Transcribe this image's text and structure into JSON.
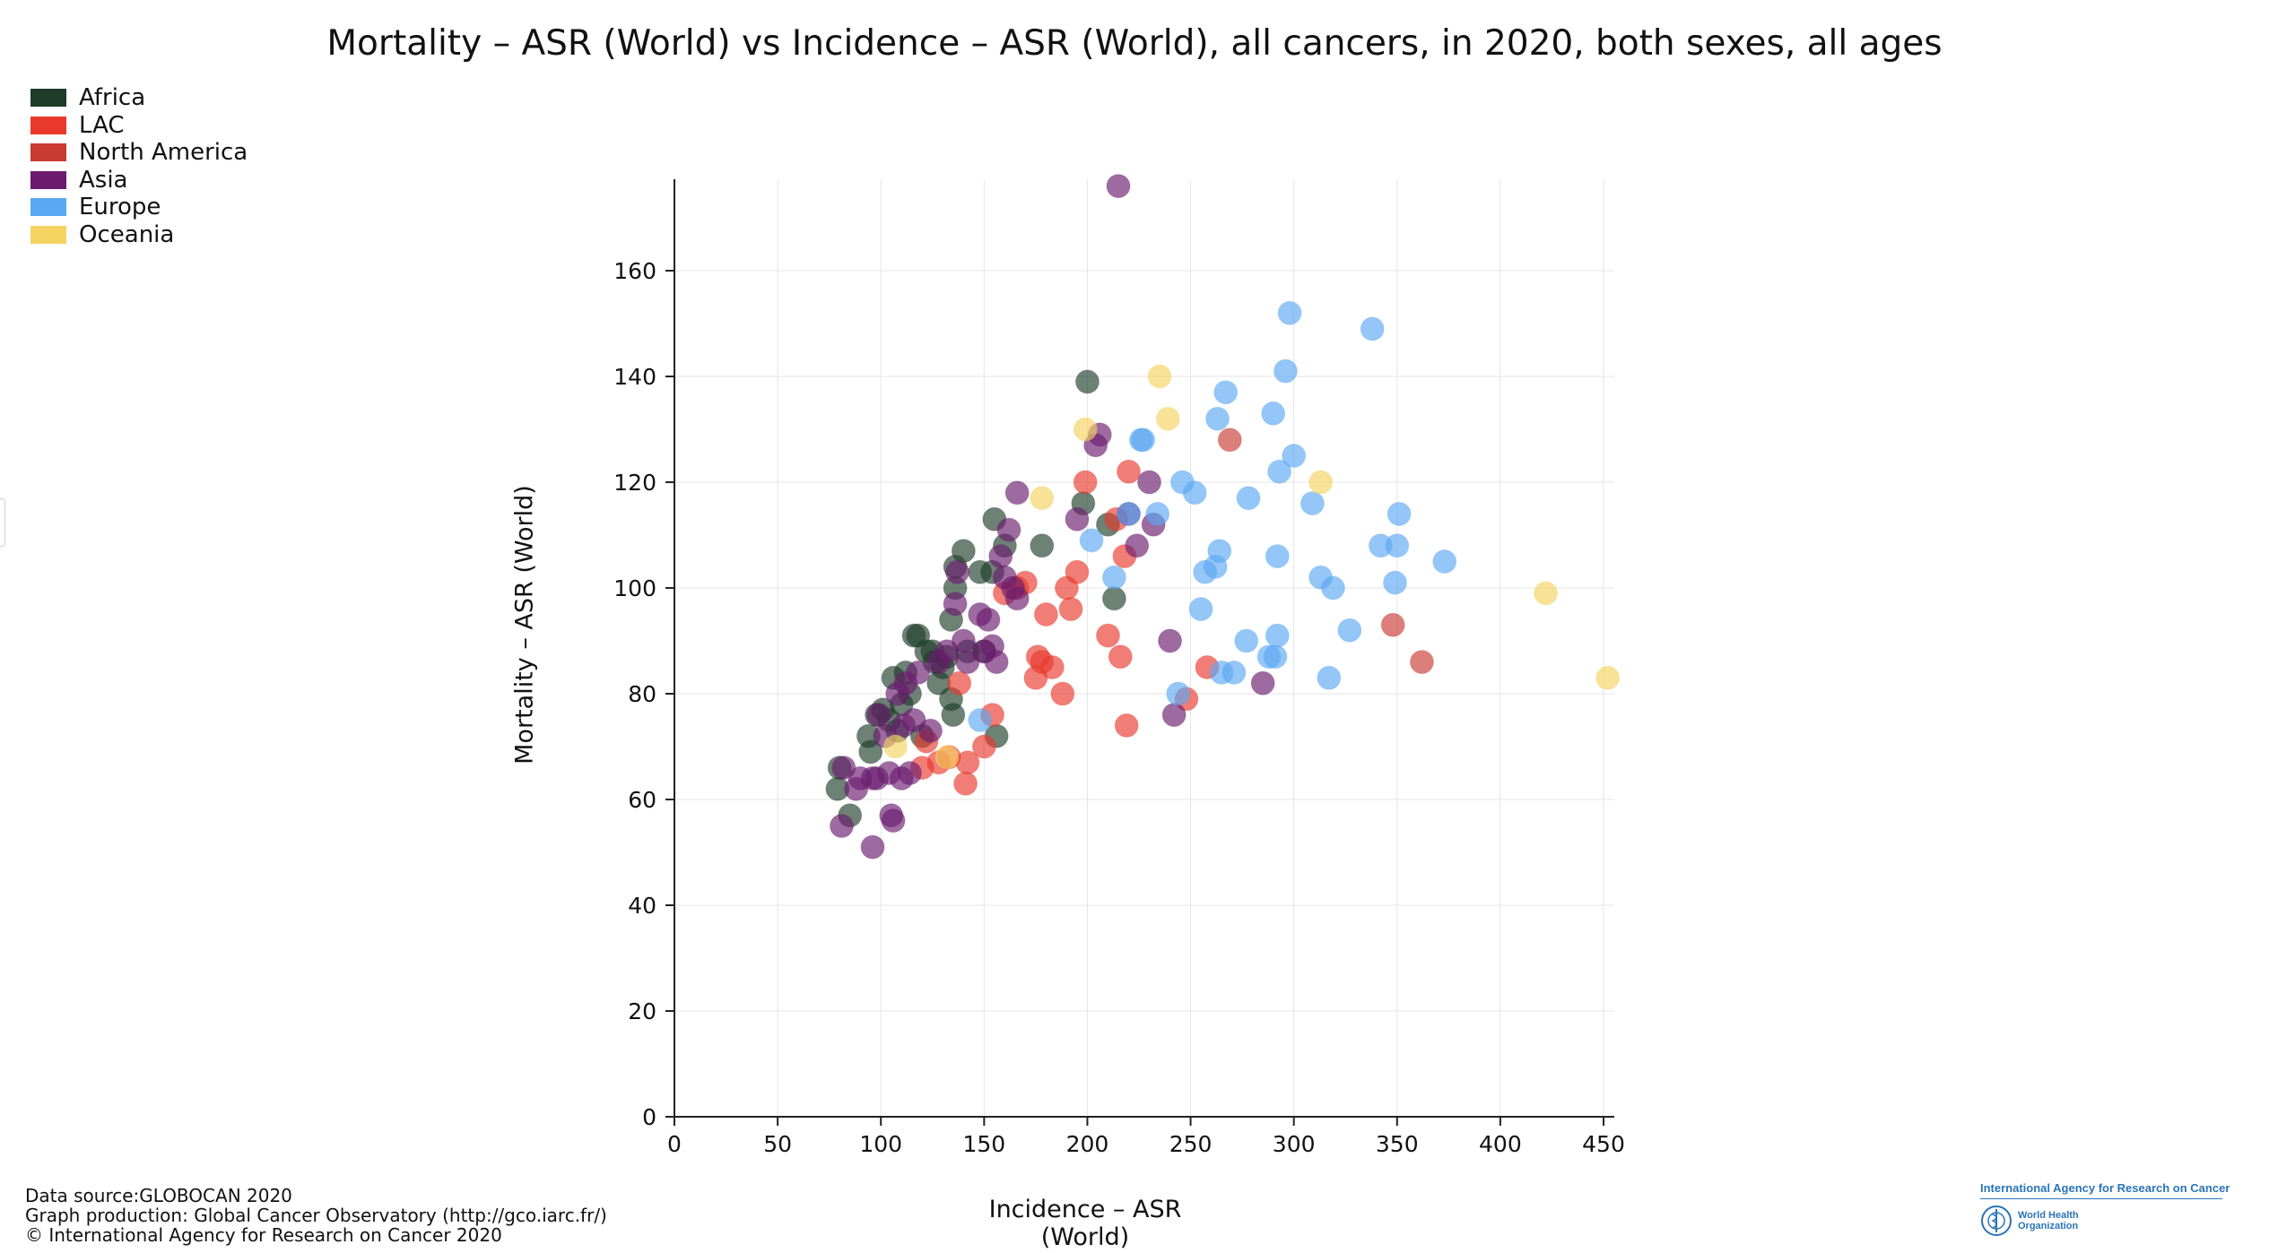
{
  "title": "Mortality – ASR (World) vs Incidence – ASR (World), all cancers, in 2020, both sexes, all ages",
  "footer": {
    "line1": "Data source:GLOBOCAN 2020",
    "line2": "Graph production: Global Cancer Observatory (http://gco.iarc.fr/)",
    "line3": "© International Agency for Research on Cancer 2020"
  },
  "logo": {
    "top": "International Agency for Research on Cancer",
    "who_line1": "World Health",
    "who_line2": "Organization",
    "icon": "who-emblem-icon"
  },
  "colors": {
    "Africa": "#1f3d2b",
    "LAC": "#e8392c",
    "North America": "#c93a32",
    "Asia": "#6a1b6e",
    "Europe": "#5aa8f2",
    "Oceania": "#f5d360"
  },
  "chart_data": {
    "type": "scatter",
    "title": "Mortality – ASR (World) vs Incidence – ASR (World), all cancers, in 2020, both sexes, all ages",
    "xlabel": "Incidence – ASR (World)",
    "ylabel": "Mortality – ASR (World)",
    "xlim": [
      0,
      452
    ],
    "ylim": [
      0,
      176
    ],
    "xticks": [
      0,
      50,
      100,
      150,
      200,
      250,
      300,
      350,
      400,
      450
    ],
    "yticks": [
      0,
      20,
      40,
      60,
      80,
      100,
      120,
      140,
      160
    ],
    "grid": true,
    "legend_position": "top-left",
    "series": [
      {
        "name": "Africa",
        "points": [
          [
            79,
            62
          ],
          [
            80,
            66
          ],
          [
            85,
            57
          ],
          [
            94,
            72
          ],
          [
            95,
            69
          ],
          [
            98,
            76
          ],
          [
            101,
            77
          ],
          [
            104,
            75
          ],
          [
            106,
            83
          ],
          [
            108,
            73
          ],
          [
            110,
            78
          ],
          [
            112,
            84
          ],
          [
            114,
            80
          ],
          [
            116,
            91
          ],
          [
            118,
            91
          ],
          [
            120,
            72
          ],
          [
            122,
            88
          ],
          [
            125,
            88
          ],
          [
            126,
            86
          ],
          [
            128,
            82
          ],
          [
            130,
            85
          ],
          [
            132,
            87
          ],
          [
            134,
            94
          ],
          [
            134,
            79
          ],
          [
            135,
            76
          ],
          [
            136,
            104
          ],
          [
            136,
            100
          ],
          [
            140,
            107
          ],
          [
            142,
            88
          ],
          [
            148,
            103
          ],
          [
            150,
            88
          ],
          [
            154,
            103
          ],
          [
            155,
            113
          ],
          [
            156,
            72
          ],
          [
            160,
            108
          ],
          [
            178,
            108
          ],
          [
            198,
            116
          ],
          [
            200,
            139
          ],
          [
            210,
            112
          ],
          [
            213,
            98
          ]
        ]
      },
      {
        "name": "LAC",
        "points": [
          [
            120,
            66
          ],
          [
            122,
            71
          ],
          [
            128,
            67
          ],
          [
            133,
            68
          ],
          [
            138,
            82
          ],
          [
            141,
            63
          ],
          [
            142,
            67
          ],
          [
            150,
            70
          ],
          [
            154,
            76
          ],
          [
            160,
            99
          ],
          [
            166,
            100
          ],
          [
            170,
            101
          ],
          [
            175,
            83
          ],
          [
            176,
            87
          ],
          [
            178,
            86
          ],
          [
            180,
            95
          ],
          [
            183,
            85
          ],
          [
            188,
            80
          ],
          [
            190,
            100
          ],
          [
            192,
            96
          ],
          [
            195,
            103
          ],
          [
            199,
            120
          ],
          [
            210,
            91
          ],
          [
            214,
            113
          ],
          [
            216,
            87
          ],
          [
            218,
            106
          ],
          [
            219,
            74
          ],
          [
            220,
            122
          ],
          [
            248,
            79
          ],
          [
            258,
            85
          ]
        ]
      },
      {
        "name": "North America",
        "points": [
          [
            269,
            128
          ],
          [
            348,
            93
          ],
          [
            362,
            86
          ]
        ]
      },
      {
        "name": "Asia",
        "points": [
          [
            81,
            55
          ],
          [
            82,
            66
          ],
          [
            88,
            62
          ],
          [
            90,
            64
          ],
          [
            96,
            51
          ],
          [
            96,
            64
          ],
          [
            98,
            64
          ],
          [
            99,
            76
          ],
          [
            102,
            72
          ],
          [
            104,
            65
          ],
          [
            105,
            57
          ],
          [
            106,
            56
          ],
          [
            108,
            80
          ],
          [
            110,
            64
          ],
          [
            111,
            74
          ],
          [
            112,
            82
          ],
          [
            114,
            65
          ],
          [
            116,
            75
          ],
          [
            118,
            84
          ],
          [
            124,
            73
          ],
          [
            128,
            86
          ],
          [
            132,
            88
          ],
          [
            136,
            97
          ],
          [
            137,
            103
          ],
          [
            140,
            90
          ],
          [
            142,
            86
          ],
          [
            148,
            95
          ],
          [
            150,
            88
          ],
          [
            152,
            94
          ],
          [
            154,
            89
          ],
          [
            156,
            86
          ],
          [
            158,
            106
          ],
          [
            160,
            102
          ],
          [
            162,
            111
          ],
          [
            164,
            100
          ],
          [
            166,
            98
          ],
          [
            166,
            118
          ],
          [
            195,
            113
          ],
          [
            204,
            127
          ],
          [
            206,
            129
          ],
          [
            220,
            114
          ],
          [
            224,
            108
          ],
          [
            230,
            120
          ],
          [
            232,
            112
          ],
          [
            240,
            90
          ],
          [
            242,
            76
          ],
          [
            285,
            82
          ],
          [
            215,
            176
          ]
        ]
      },
      {
        "name": "Europe",
        "points": [
          [
            148,
            75
          ],
          [
            202,
            109
          ],
          [
            213,
            102
          ],
          [
            220,
            114
          ],
          [
            226,
            128
          ],
          [
            227,
            128
          ],
          [
            234,
            114
          ],
          [
            244,
            80
          ],
          [
            246,
            120
          ],
          [
            252,
            118
          ],
          [
            255,
            96
          ],
          [
            257,
            103
          ],
          [
            262,
            104
          ],
          [
            263,
            132
          ],
          [
            264,
            107
          ],
          [
            265,
            84
          ],
          [
            267,
            137
          ],
          [
            271,
            84
          ],
          [
            277,
            90
          ],
          [
            278,
            117
          ],
          [
            288,
            87
          ],
          [
            290,
            133
          ],
          [
            291,
            87
          ],
          [
            292,
            106
          ],
          [
            292,
            91
          ],
          [
            293,
            122
          ],
          [
            296,
            141
          ],
          [
            298,
            152
          ],
          [
            300,
            125
          ],
          [
            309,
            116
          ],
          [
            313,
            102
          ],
          [
            317,
            83
          ],
          [
            319,
            100
          ],
          [
            327,
            92
          ],
          [
            338,
            149
          ],
          [
            342,
            108
          ],
          [
            349,
            101
          ],
          [
            350,
            108
          ],
          [
            351,
            114
          ],
          [
            373,
            105
          ]
        ]
      },
      {
        "name": "Oceania",
        "points": [
          [
            107,
            70
          ],
          [
            132,
            68
          ],
          [
            178,
            117
          ],
          [
            199,
            130
          ],
          [
            235,
            140
          ],
          [
            239,
            132
          ],
          [
            313,
            120
          ],
          [
            422,
            99
          ],
          [
            452,
            83
          ]
        ]
      }
    ]
  }
}
